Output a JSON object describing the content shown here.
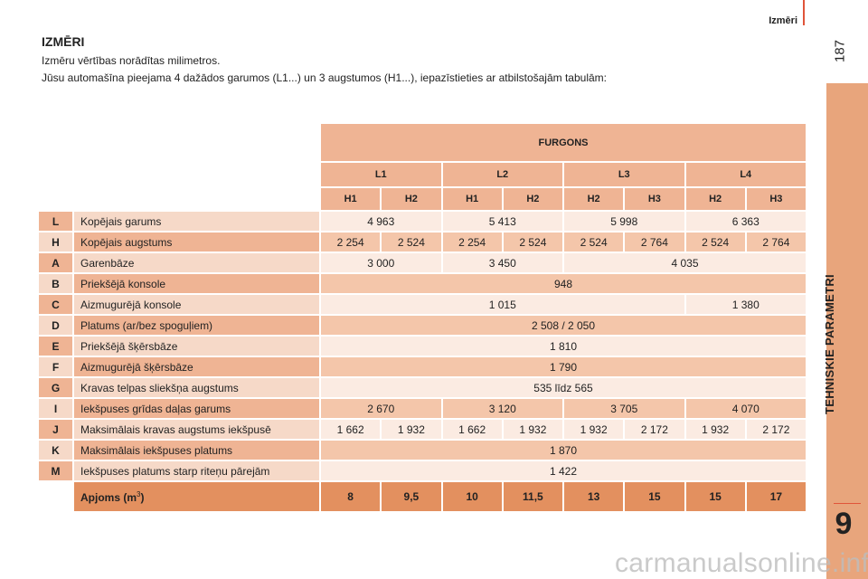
{
  "header": {
    "section": "Izmēri",
    "page": "187"
  },
  "sidebar": {
    "chapter_title": "TEHNISKIE PARAMETRI",
    "chapter_number": "9"
  },
  "title": "IZMĒRI",
  "intro": [
    "Izmēru vērtības norādītas milimetros.",
    "Jūsu automašīna pieejama 4 dažādos garumos (L1...) un 3 augstumos (H1...), iepazīstieties ar atbilstošajām tabulām:"
  ],
  "table": {
    "group": "FURGONS",
    "lengths": [
      "L1",
      "L2",
      "L3",
      "L4"
    ],
    "heights": [
      "H1",
      "H2",
      "H1",
      "H2",
      "H2",
      "H3",
      "H2",
      "H3"
    ],
    "rows": [
      {
        "code": "L",
        "label": "Kopējais garums",
        "cells": [
          {
            "v": "4 963",
            "span": 2
          },
          {
            "v": "5 413",
            "span": 2
          },
          {
            "v": "5 998",
            "span": 2
          },
          {
            "v": "6 363",
            "span": 2
          }
        ]
      },
      {
        "code": "H",
        "label": "Kopējais augstums",
        "cells": [
          {
            "v": "2 254"
          },
          {
            "v": "2 524"
          },
          {
            "v": "2 254"
          },
          {
            "v": "2 524"
          },
          {
            "v": "2 524"
          },
          {
            "v": "2 764"
          },
          {
            "v": "2 524"
          },
          {
            "v": "2 764"
          }
        ]
      },
      {
        "code": "A",
        "label": "Garenbāze",
        "cells": [
          {
            "v": "3 000",
            "span": 2
          },
          {
            "v": "3 450",
            "span": 2
          },
          {
            "v": "4 035",
            "span": 4
          }
        ]
      },
      {
        "code": "B",
        "label": "Priekšējā konsole",
        "cells": [
          {
            "v": "948",
            "span": 8
          }
        ]
      },
      {
        "code": "C",
        "label": "Aizmugurējā konsole",
        "cells": [
          {
            "v": "1 015",
            "span": 6
          },
          {
            "v": "1 380",
            "span": 2
          }
        ]
      },
      {
        "code": "D",
        "label": "Platums (ar/bez spoguļiem)",
        "cells": [
          {
            "v": "2 508 / 2 050",
            "span": 8
          }
        ]
      },
      {
        "code": "E",
        "label": "Priekšējā šķērsbāze",
        "cells": [
          {
            "v": "1 810",
            "span": 8
          }
        ]
      },
      {
        "code": "F",
        "label": "Aizmugurējā šķērsbāze",
        "cells": [
          {
            "v": "1 790",
            "span": 8
          }
        ]
      },
      {
        "code": "G",
        "label": "Kravas telpas sliekšņa augstums",
        "cells": [
          {
            "v": "535 līdz 565",
            "span": 8
          }
        ]
      },
      {
        "code": "I",
        "label": "Iekšpuses grīdas daļas garums",
        "cells": [
          {
            "v": "2 670",
            "span": 2
          },
          {
            "v": "3 120",
            "span": 2
          },
          {
            "v": "3 705",
            "span": 2
          },
          {
            "v": "4 070",
            "span": 2
          }
        ]
      },
      {
        "code": "J",
        "label": "Maksimālais kravas augstums iekšpusē",
        "cells": [
          {
            "v": "1 662"
          },
          {
            "v": "1 932"
          },
          {
            "v": "1 662"
          },
          {
            "v": "1 932"
          },
          {
            "v": "1 932"
          },
          {
            "v": "2 172"
          },
          {
            "v": "1 932"
          },
          {
            "v": "2 172"
          }
        ]
      },
      {
        "code": "K",
        "label": "Maksimālais iekšpuses platums",
        "cells": [
          {
            "v": "1 870",
            "span": 8
          }
        ]
      },
      {
        "code": "M",
        "label": "Iekšpuses platums starp riteņu pārejām",
        "cells": [
          {
            "v": "1 422",
            "span": 8
          }
        ]
      }
    ],
    "volume": {
      "label": "Apjoms (m",
      "sup": "3",
      "close": ")",
      "values": [
        "8",
        "9,5",
        "10",
        "11,5",
        "13",
        "15",
        "15",
        "17"
      ]
    }
  },
  "watermark": "carmanualsonline.info"
}
